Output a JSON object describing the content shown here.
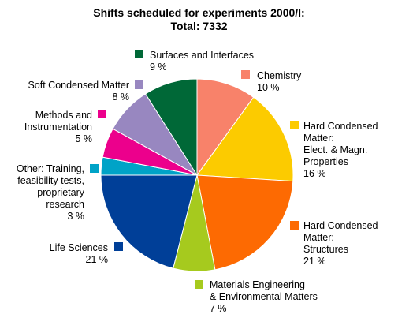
{
  "chart_data": {
    "type": "pie",
    "title": "Shifts scheduled for experiments 2000/I:",
    "subtitle": "Total: 7332",
    "start_angle_deg": 0,
    "direction": "clockwise",
    "slices": [
      {
        "label_lines": [
          "Chemistry"
        ],
        "percent_label": "10 %",
        "value": 10,
        "color": "#f8826a"
      },
      {
        "label_lines": [
          "Hard Condensed",
          "Matter:",
          "Elect. & Magn.",
          "Properties"
        ],
        "percent_label": "16 %",
        "value": 16,
        "color": "#fccb00"
      },
      {
        "label_lines": [
          "Hard Condensed",
          "Matter:",
          "Structures"
        ],
        "percent_label": "21 %",
        "value": 21,
        "color": "#fd6a02"
      },
      {
        "label_lines": [
          "Materials Engineering",
          "& Environmental Matters"
        ],
        "percent_label": "7 %",
        "value": 7,
        "color": "#a6ca1e"
      },
      {
        "label_lines": [
          "Life Sciences"
        ],
        "percent_label": "21 %",
        "value": 21,
        "color": "#003f98"
      },
      {
        "label_lines": [
          "Other: Training,",
          "feasibility tests,",
          "proprietary",
          "research"
        ],
        "percent_label": "3 %",
        "value": 3,
        "color": "#00a3c7"
      },
      {
        "label_lines": [
          "Methods and",
          "Instrumentation"
        ],
        "percent_label": "5 %",
        "value": 5,
        "color": "#ec008c"
      },
      {
        "label_lines": [
          "Soft Condensed Matter"
        ],
        "percent_label": "8 %",
        "value": 8,
        "color": "#9887c0"
      },
      {
        "label_lines": [
          "Surfaces and Interfaces"
        ],
        "percent_label": "9 %",
        "value": 9,
        "color": "#006837"
      }
    ]
  }
}
